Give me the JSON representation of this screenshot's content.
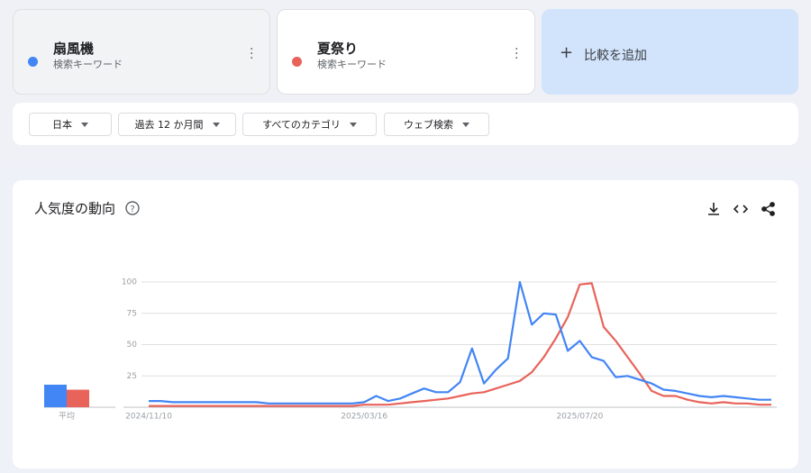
{
  "terms": [
    {
      "subtitle": "検索キーワード"
    },
    {
      "subtitle": "検索キーワード"
    }
  ],
  "compare_add": "比較を追加",
  "filters": [
    "日本",
    "過去 12 か月間",
    "すべてのカテゴリ",
    "ウェブ検索"
  ],
  "chart_data": {
    "type": "line",
    "title": "人気度の動向",
    "average_label": "平均",
    "categories": [
      "2024/11/10",
      null,
      null,
      null,
      null,
      null,
      null,
      null,
      null,
      null,
      null,
      null,
      null,
      null,
      null,
      null,
      null,
      null,
      "2025/03/16",
      null,
      null,
      null,
      null,
      null,
      null,
      null,
      null,
      null,
      null,
      null,
      null,
      null,
      null,
      null,
      null,
      null,
      "2025/07/20",
      null,
      null,
      null,
      null,
      null,
      null,
      null,
      null,
      null,
      null,
      null,
      null,
      null,
      null,
      null,
      null
    ],
    "series": [
      {
        "name": "扇風機",
        "color": "#4285f4",
        "average": 18,
        "values": [
          5,
          5,
          4,
          4,
          4,
          4,
          4,
          4,
          4,
          4,
          3,
          3,
          3,
          3,
          3,
          3,
          3,
          3,
          4,
          9,
          5,
          7,
          11,
          15,
          12,
          12,
          20,
          47,
          19,
          30,
          39,
          100,
          66,
          75,
          74,
          45,
          53,
          40,
          37,
          24,
          25,
          22,
          19,
          14,
          13,
          11,
          9,
          8,
          9,
          8,
          7,
          6,
          6
        ]
      },
      {
        "name": "夏祭り",
        "color": "#e8635a",
        "average": 14,
        "values": [
          1,
          1,
          1,
          1,
          1,
          1,
          1,
          1,
          1,
          1,
          1,
          1,
          1,
          1,
          1,
          1,
          1,
          1,
          2,
          2,
          2,
          3,
          4,
          5,
          6,
          7,
          9,
          11,
          12,
          15,
          18,
          21,
          28,
          40,
          55,
          72,
          98,
          99,
          64,
          53,
          40,
          27,
          13,
          9,
          9,
          6,
          4,
          3,
          4,
          3,
          3,
          2,
          2
        ]
      }
    ],
    "ylim": [
      0,
      100
    ],
    "yticks": [
      25,
      50,
      75,
      100
    ],
    "grid": true
  }
}
